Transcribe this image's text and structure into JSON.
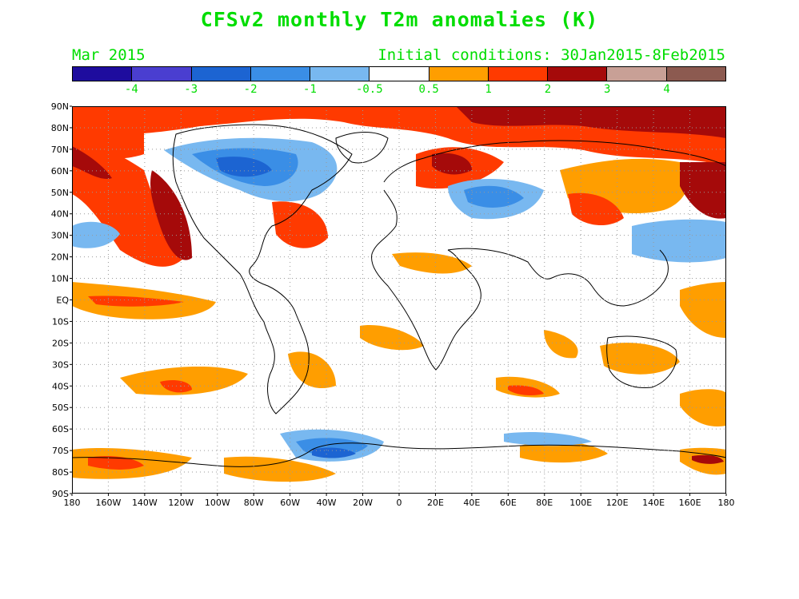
{
  "title": "CFSv2 monthly T2m anomalies (K)",
  "subtitle_left": "Mar 2015",
  "subtitle_right": "Initial conditions: 30Jan2015-8Feb2015",
  "colorbar": {
    "colors": [
      "#1e0c9e",
      "#4a3ed0",
      "#1c64d2",
      "#3a8ee6",
      "#78b8f0",
      "#ffffff",
      "#ff9e00",
      "#ff3a00",
      "#a50a0a",
      "#c8a096",
      "#8c5a50"
    ],
    "labels": [
      "-4",
      "-3",
      "-2",
      "-1",
      "-0.5",
      "0.5",
      "1",
      "2",
      "3",
      "4"
    ]
  },
  "map": {
    "lat_labels": [
      "90N",
      "80N",
      "70N",
      "60N",
      "50N",
      "40N",
      "30N",
      "20N",
      "10N",
      "EQ",
      "10S",
      "20S",
      "30S",
      "40S",
      "50S",
      "60S",
      "70S",
      "80S",
      "90S"
    ],
    "lon_labels": [
      "180",
      "160W",
      "140W",
      "120W",
      "100W",
      "80W",
      "60W",
      "40W",
      "20W",
      "0",
      "20E",
      "40E",
      "60E",
      "80E",
      "100E",
      "120E",
      "140E",
      "160E",
      "180"
    ]
  }
}
